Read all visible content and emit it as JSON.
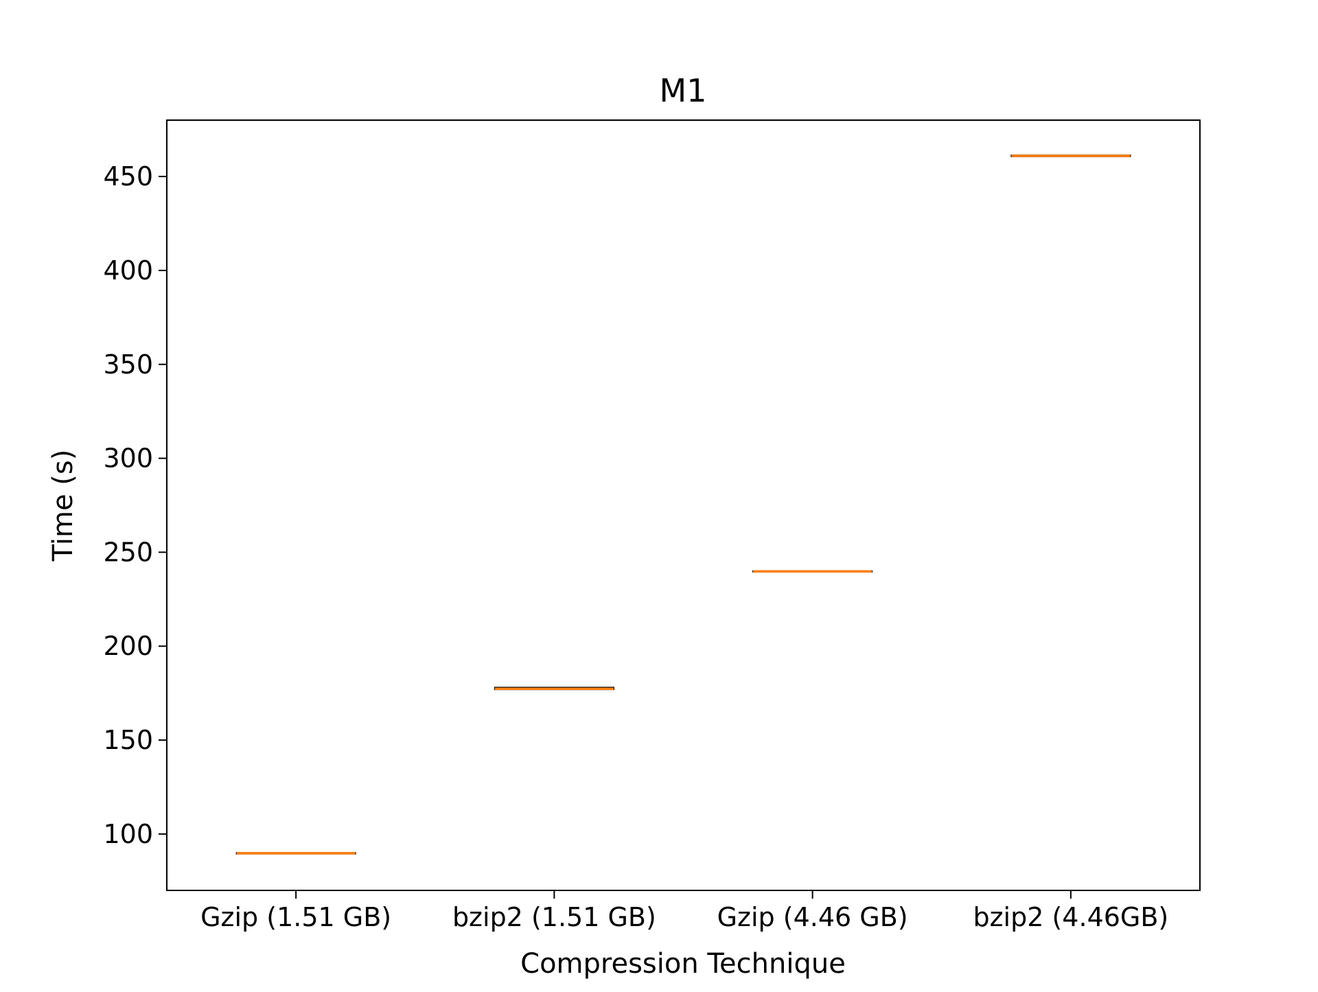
{
  "chart_data": {
    "type": "box",
    "title": "M1",
    "xlabel": "Compression Technique",
    "ylabel": "Time (s)",
    "ylim": [
      70,
      480
    ],
    "yticks": [
      100,
      150,
      200,
      250,
      300,
      350,
      400,
      450
    ],
    "categories": [
      "Gzip (1.51 GB)",
      "bzip2 (1.51 GB)",
      "Gzip (4.46 GB)",
      "bzip2 (4.46GB)"
    ],
    "series": [
      {
        "values": [
          {
            "q1": 89.5,
            "median": 89.8,
            "q3": 90.0
          },
          {
            "q1": 177.0,
            "median": 177.3,
            "q3": 178.0
          },
          {
            "q1": 239.6,
            "median": 239.8,
            "q3": 240.0
          },
          {
            "q1": 460.7,
            "median": 461.0,
            "q3": 461.3
          }
        ]
      }
    ],
    "median_color": "#ff7f0e",
    "box_color": "#000000",
    "grid": false
  }
}
